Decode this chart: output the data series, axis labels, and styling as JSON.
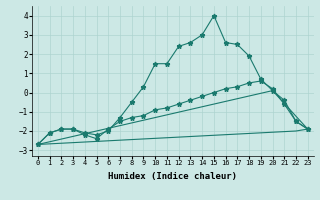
{
  "xlabel": "Humidex (Indice chaleur)",
  "xlim": [
    -0.5,
    23.5
  ],
  "ylim": [
    -3.3,
    4.5
  ],
  "xticks": [
    0,
    1,
    2,
    3,
    4,
    5,
    6,
    7,
    8,
    9,
    10,
    11,
    12,
    13,
    14,
    15,
    16,
    17,
    18,
    19,
    20,
    21,
    22,
    23
  ],
  "yticks": [
    -3,
    -2,
    -1,
    0,
    1,
    2,
    3,
    4
  ],
  "bg_color": "#cce8e5",
  "line_color": "#1a7a6e",
  "grid_color": "#aed4d0",
  "line1_x": [
    0,
    1,
    2,
    3,
    4,
    5,
    6,
    7,
    8,
    9,
    10,
    11,
    12,
    13,
    14,
    15,
    16,
    17,
    18,
    19,
    20,
    21,
    22,
    23
  ],
  "line1_y": [
    -2.7,
    -2.1,
    -1.9,
    -1.9,
    -2.1,
    -2.2,
    -2.0,
    -1.3,
    -0.5,
    0.3,
    1.5,
    1.5,
    2.4,
    2.6,
    3.0,
    4.0,
    2.6,
    2.5,
    1.9,
    0.7,
    0.1,
    -0.4,
    -1.5,
    -1.9
  ],
  "line2_x": [
    0,
    1,
    2,
    3,
    4,
    5,
    6,
    7,
    8,
    9,
    10,
    11,
    12,
    13,
    14,
    15,
    16,
    17,
    18,
    19,
    20,
    21,
    22,
    23
  ],
  "line2_y": [
    -2.7,
    -2.1,
    -1.9,
    -1.9,
    -2.2,
    -2.4,
    -1.9,
    -1.5,
    -1.3,
    -1.2,
    -0.9,
    -0.8,
    -0.6,
    -0.4,
    -0.2,
    0.0,
    0.2,
    0.3,
    0.5,
    0.6,
    0.2,
    -0.6,
    -1.5,
    -1.9
  ],
  "line3_x": [
    0,
    20,
    23
  ],
  "line3_y": [
    -2.7,
    0.1,
    -1.9
  ],
  "line4_x": [
    0,
    22,
    23
  ],
  "line4_y": [
    -2.7,
    -2.0,
    -1.9
  ]
}
